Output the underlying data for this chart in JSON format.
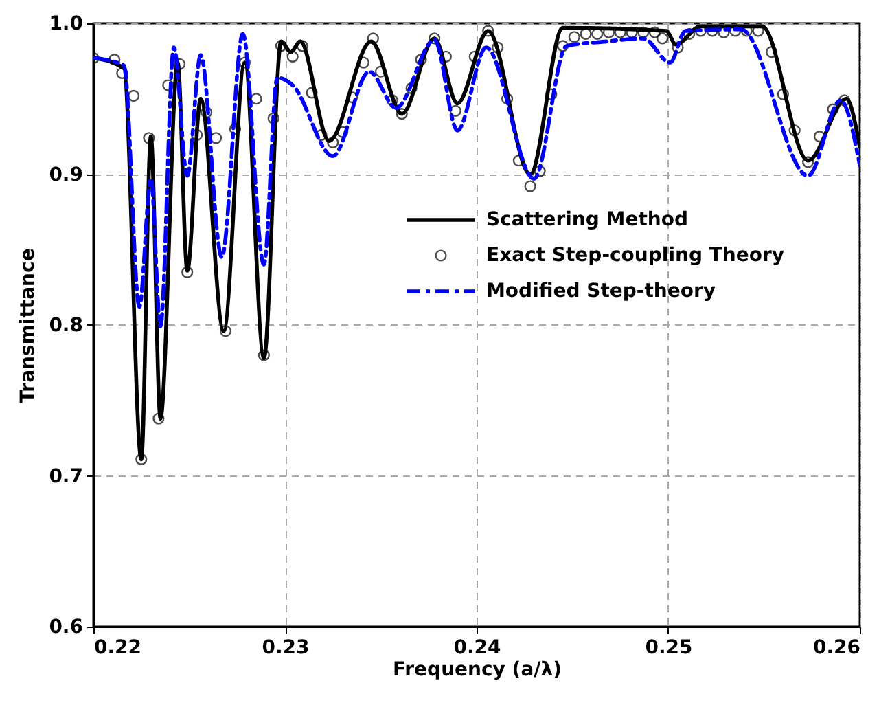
{
  "chart_data": {
    "type": "line",
    "xlabel": "Frequency (a/λ)",
    "ylabel": "Transmittance",
    "xlim": [
      0.22,
      0.26
    ],
    "xticks": [
      0.22,
      0.23,
      0.24,
      0.25,
      0.26
    ],
    "ylim": [
      0.6,
      1.0
    ],
    "yticks": [
      {
        "value": 0.6,
        "label": "0.6"
      },
      {
        "value": 0.7,
        "label": "0.7"
      },
      {
        "value": 0.8,
        "label": "0.8"
      },
      {
        "value": 0.9,
        "label": "0.9"
      },
      {
        "value": 1.0,
        "label": "1.0"
      }
    ],
    "grid": true,
    "legend": "right",
    "series": [
      {
        "name": "Scattering Method",
        "type": "line",
        "line_style": "solid",
        "color": "#000000",
        "x": [
          0.2201,
          0.2216,
          0.2225,
          0.223,
          0.2235,
          0.2244,
          0.2249,
          0.2256,
          0.2268,
          0.2279,
          0.2289,
          0.2298,
          0.2303,
          0.2308,
          0.2323,
          0.2345,
          0.2361,
          0.2378,
          0.239,
          0.2406,
          0.2428,
          0.2445,
          0.2499,
          0.2504,
          0.2517,
          0.2549,
          0.2573,
          0.2593,
          0.26
        ],
        "values": [
          0.977,
          0.97,
          0.711,
          0.925,
          0.738,
          0.974,
          0.836,
          0.95,
          0.796,
          0.974,
          0.778,
          0.988,
          0.981,
          0.988,
          0.922,
          0.988,
          0.94,
          0.99,
          0.947,
          0.995,
          0.9,
          0.997,
          0.995,
          0.986,
          0.998,
          0.998,
          0.909,
          0.95,
          0.918
        ]
      },
      {
        "name": "Exact Step-coupling Theory",
        "type": "scatter",
        "marker": "circle",
        "color": "#000000",
        "x": [
          0.22,
          0.2211,
          0.2215,
          0.2221,
          0.2225,
          0.2229,
          0.2234,
          0.2239,
          0.2245,
          0.2249,
          0.2254,
          0.2259,
          0.2264,
          0.2269,
          0.2274,
          0.2279,
          0.2285,
          0.2289,
          0.2294,
          0.2298,
          0.2304,
          0.2309,
          0.2314,
          0.2319,
          0.2325,
          0.233,
          0.2335,
          0.2341,
          0.2346,
          0.235,
          0.2356,
          0.2361,
          0.2366,
          0.2371,
          0.2378,
          0.2384,
          0.2389,
          0.2399,
          0.2406,
          0.2411,
          0.2416,
          0.2422,
          0.2428,
          0.2433,
          0.2439,
          0.2445,
          0.2451,
          0.2457,
          0.2463,
          0.2469,
          0.2475,
          0.2481,
          0.2487,
          0.2493,
          0.2497,
          0.2505,
          0.2511,
          0.2517,
          0.2523,
          0.2529,
          0.2535,
          0.2541,
          0.2547,
          0.2554,
          0.256,
          0.2566,
          0.2573,
          0.2579,
          0.2586,
          0.2592
        ],
        "values": [
          0.977,
          0.976,
          0.967,
          0.952,
          0.711,
          0.924,
          0.738,
          0.959,
          0.973,
          0.835,
          0.926,
          0.941,
          0.924,
          0.796,
          0.93,
          0.974,
          0.95,
          0.78,
          0.937,
          0.985,
          0.978,
          0.985,
          0.954,
          0.926,
          0.921,
          0.928,
          0.951,
          0.974,
          0.99,
          0.968,
          0.949,
          0.94,
          0.957,
          0.976,
          0.99,
          0.978,
          0.942,
          0.978,
          0.995,
          0.984,
          0.95,
          0.909,
          0.892,
          0.902,
          0.953,
          0.985,
          0.991,
          0.993,
          0.993,
          0.994,
          0.994,
          0.994,
          0.994,
          0.994,
          0.99,
          0.984,
          0.993,
          0.995,
          0.995,
          0.994,
          0.995,
          0.995,
          0.995,
          0.981,
          0.953,
          0.929,
          0.908,
          0.925,
          0.943,
          0.949
        ]
      },
      {
        "name": "Modified Step-theory",
        "type": "line",
        "line_style": "dashed",
        "color": "#0000ff",
        "x": [
          0.2201,
          0.2216,
          0.2224,
          0.223,
          0.2235,
          0.2242,
          0.2249,
          0.2256,
          0.2267,
          0.2278,
          0.2289,
          0.2296,
          0.2304,
          0.2325,
          0.2344,
          0.2358,
          0.2378,
          0.239,
          0.2405,
          0.243,
          0.2447,
          0.2468,
          0.2487,
          0.2501,
          0.2509,
          0.2538,
          0.2573,
          0.259,
          0.26
        ],
        "values": [
          0.977,
          0.972,
          0.812,
          0.897,
          0.799,
          0.984,
          0.899,
          0.979,
          0.845,
          0.993,
          0.84,
          0.964,
          0.959,
          0.912,
          0.968,
          0.944,
          0.989,
          0.929,
          0.984,
          0.897,
          0.985,
          0.988,
          0.99,
          0.974,
          0.995,
          0.996,
          0.899,
          0.949,
          0.906
        ]
      }
    ]
  }
}
